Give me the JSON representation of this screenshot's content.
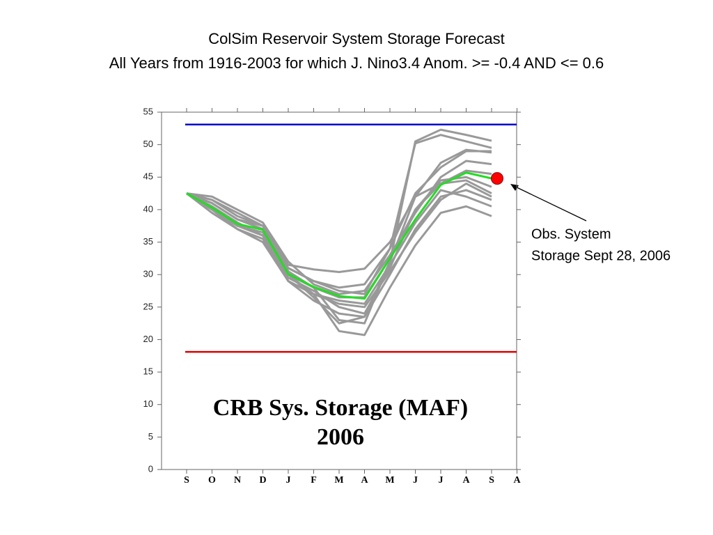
{
  "chart_data": {
    "type": "line",
    "title": "ColSim Reservoir System Storage Forecast",
    "subtitle": "All Years from 1916-2003 for which J. Nino3.4 Anom. >= -0.4  AND <= 0.6",
    "inner_text": [
      "CRB Sys. Storage (MAF)",
      "2006"
    ],
    "annotation": [
      "Obs. System",
      "Storage Sept 28, 2006"
    ],
    "categories": [
      "S",
      "O",
      "N",
      "D",
      "J",
      "F",
      "M",
      "A",
      "M",
      "J",
      "J",
      "A",
      "S",
      "A"
    ],
    "ylim": [
      0,
      55
    ],
    "yticks": [
      0,
      5,
      10,
      15,
      20,
      25,
      30,
      35,
      40,
      45,
      50,
      55
    ],
    "series": [
      {
        "color": "#999999",
        "values": [
          42.5,
          41.5,
          39.5,
          37.5,
          31.5,
          30.8,
          30.4,
          30.9,
          35,
          42,
          47.2,
          49.2,
          48.8,
          null
        ]
      },
      {
        "color": "#999999",
        "values": [
          42.5,
          40,
          37,
          35.5,
          29,
          27,
          21.3,
          20.7,
          28,
          34.5,
          39.5,
          40.5,
          39,
          null
        ]
      },
      {
        "color": "#999999",
        "values": [
          42.5,
          41,
          38.5,
          37,
          30,
          28,
          23,
          22.5,
          32,
          50.5,
          52.3,
          51.5,
          50.6,
          null
        ]
      },
      {
        "color": "#999999",
        "values": [
          42.5,
          40.5,
          38,
          36,
          29.5,
          27.5,
          25,
          24,
          31,
          40,
          44,
          46,
          45.5,
          null
        ]
      },
      {
        "color": "#999999",
        "values": [
          42.5,
          40,
          37.5,
          36.5,
          29,
          26,
          24,
          23.5,
          30,
          37,
          42,
          43,
          41.5,
          null
        ]
      },
      {
        "color": "#999999",
        "values": [
          42.5,
          41,
          38.5,
          37.5,
          31,
          29,
          28,
          28.5,
          34,
          42.5,
          46.5,
          49,
          49,
          null
        ]
      },
      {
        "color": "#999999",
        "values": [
          42.5,
          39.5,
          37,
          35,
          29,
          27,
          25.5,
          25,
          30.5,
          36.5,
          41.5,
          44,
          42,
          null
        ]
      },
      {
        "color": "#999999",
        "values": [
          42.5,
          42,
          40,
          38,
          32,
          28.5,
          27,
          27.5,
          33,
          39.5,
          45,
          47.5,
          47,
          null
        ]
      },
      {
        "color": "#999999",
        "values": [
          42.5,
          40,
          37.5,
          36,
          30,
          27,
          26,
          25.5,
          31.5,
          38,
          43,
          42,
          40.5,
          null
        ]
      },
      {
        "color": "#999999",
        "values": [
          42.5,
          41,
          38.5,
          37,
          30.5,
          28,
          26.5,
          26.5,
          32.5,
          40,
          44.5,
          45,
          43.5,
          null
        ]
      },
      {
        "color": "#999999",
        "values": [
          42.5,
          40.5,
          38,
          36,
          30,
          26.5,
          22.5,
          23.5,
          32,
          42,
          44,
          44.5,
          42.5,
          null
        ]
      },
      {
        "color": "#999999",
        "values": [
          42.5,
          41.5,
          39,
          37.5,
          31,
          29,
          27.5,
          27,
          34,
          50.2,
          51.5,
          50.5,
          49.5,
          null
        ]
      },
      {
        "color": "#22dd22",
        "values": [
          42.5,
          40.3,
          37.8,
          36.9,
          30.1,
          28.1,
          26.7,
          26.3,
          32.5,
          38.5,
          43.8,
          45.7,
          44.8,
          null
        ]
      }
    ],
    "hlines": [
      {
        "value": 53.1,
        "color": "#0000cc"
      },
      {
        "value": 18.1,
        "color": "#dd0000"
      }
    ],
    "observed": {
      "value": 44.8,
      "color": "#ff0000"
    }
  }
}
